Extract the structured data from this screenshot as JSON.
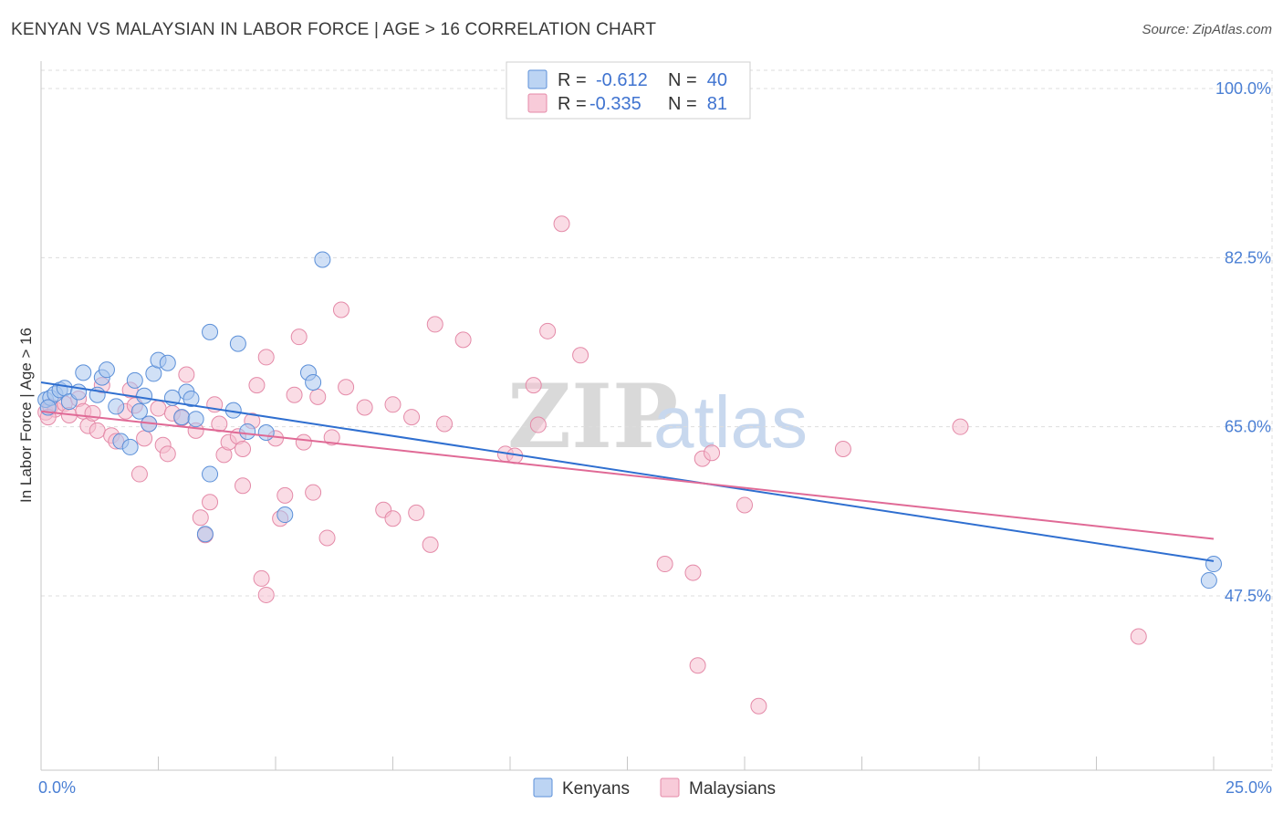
{
  "title": "KENYAN VS MALAYSIAN IN LABOR FORCE | AGE > 16 CORRELATION CHART",
  "source": "Source: ZipAtlas.com",
  "watermark": {
    "zip": "ZIP",
    "atlas": "atlas"
  },
  "legend": {
    "rows": [
      {
        "r_label": "R =",
        "r_value": "-0.612",
        "n_label": "N =",
        "n_value": "40"
      },
      {
        "r_label": "R =",
        "r_value": "-0.335",
        "n_label": "N =",
        "n_value": "81"
      }
    ]
  },
  "bottom_legend": [
    "Kenyans",
    "Malaysians"
  ],
  "colors": {
    "kenyan_fill": "#a9c7ef",
    "kenyan_stroke": "#5b8fd8",
    "kenyan_line": "#2f6fd0",
    "malaysian_fill": "#f5bfd0",
    "malaysian_stroke": "#e48aa8",
    "malaysian_line": "#e06a96",
    "tick_text": "#4a7fd4",
    "grid": "#dddddd"
  },
  "chart_data": {
    "type": "scatter",
    "title": "KENYAN VS MALAYSIAN IN LABOR FORCE | AGE > 16 CORRELATION CHART",
    "xlabel": "",
    "ylabel": "In Labor Force | Age > 16",
    "xlim": [
      0,
      25
    ],
    "ylim": [
      32,
      102
    ],
    "x_tick_labels": [
      "0.0%",
      "25.0%"
    ],
    "y_ticks": [
      47.5,
      65.0,
      82.5,
      100.0
    ],
    "y_tick_labels": [
      "47.5%",
      "65.0%",
      "82.5%",
      "100.0%"
    ],
    "grid": true,
    "legend_placement": "top-center",
    "series": [
      {
        "name": "Kenyans",
        "r": -0.612,
        "n": 40,
        "trend": {
          "x": [
            0,
            25
          ],
          "y": [
            69.6,
            51.1
          ]
        },
        "points": [
          [
            0.1,
            67.8
          ],
          [
            0.2,
            68.0
          ],
          [
            0.3,
            68.4
          ],
          [
            0.4,
            68.8
          ],
          [
            0.5,
            69.0
          ],
          [
            0.6,
            67.6
          ],
          [
            0.8,
            68.6
          ],
          [
            0.9,
            70.6
          ],
          [
            1.2,
            68.3
          ],
          [
            1.3,
            70.1
          ],
          [
            1.4,
            70.9
          ],
          [
            1.6,
            67.1
          ],
          [
            1.7,
            63.5
          ],
          [
            1.9,
            62.9
          ],
          [
            2.0,
            69.8
          ],
          [
            2.1,
            66.6
          ],
          [
            2.2,
            68.2
          ],
          [
            2.3,
            65.3
          ],
          [
            2.4,
            70.5
          ],
          [
            2.5,
            71.9
          ],
          [
            2.7,
            71.6
          ],
          [
            2.8,
            68.0
          ],
          [
            3.0,
            66.0
          ],
          [
            3.1,
            68.6
          ],
          [
            3.2,
            67.9
          ],
          [
            3.3,
            65.8
          ],
          [
            3.5,
            53.9
          ],
          [
            3.6,
            60.1
          ],
          [
            3.6,
            74.8
          ],
          [
            4.1,
            66.7
          ],
          [
            4.2,
            73.6
          ],
          [
            4.4,
            64.5
          ],
          [
            4.8,
            64.4
          ],
          [
            5.2,
            55.9
          ],
          [
            5.7,
            70.6
          ],
          [
            5.8,
            69.6
          ],
          [
            6.0,
            82.3
          ],
          [
            24.9,
            49.1
          ],
          [
            25.0,
            50.8
          ],
          [
            0.15,
            67.0
          ]
        ]
      },
      {
        "name": "Malaysians",
        "r": -0.335,
        "n": 81,
        "trend": {
          "x": [
            0,
            25
          ],
          "y": [
            66.6,
            53.4
          ]
        },
        "points": [
          [
            0.1,
            66.5
          ],
          [
            0.2,
            67.1
          ],
          [
            0.3,
            66.8
          ],
          [
            0.5,
            67.4
          ],
          [
            0.6,
            66.2
          ],
          [
            0.8,
            67.9
          ],
          [
            0.9,
            66.6
          ],
          [
            1.0,
            65.1
          ],
          [
            1.1,
            66.4
          ],
          [
            1.2,
            64.6
          ],
          [
            1.3,
            69.3
          ],
          [
            1.5,
            64.1
          ],
          [
            1.6,
            63.5
          ],
          [
            1.8,
            66.6
          ],
          [
            1.9,
            68.8
          ],
          [
            2.0,
            67.2
          ],
          [
            2.1,
            60.1
          ],
          [
            2.2,
            63.8
          ],
          [
            2.3,
            65.3
          ],
          [
            2.5,
            66.9
          ],
          [
            2.6,
            63.1
          ],
          [
            2.7,
            62.2
          ],
          [
            2.8,
            66.4
          ],
          [
            3.0,
            65.9
          ],
          [
            3.1,
            70.4
          ],
          [
            3.3,
            64.6
          ],
          [
            3.4,
            55.6
          ],
          [
            3.5,
            53.8
          ],
          [
            3.6,
            57.2
          ],
          [
            3.7,
            67.3
          ],
          [
            3.8,
            65.3
          ],
          [
            3.9,
            62.1
          ],
          [
            4.0,
            63.4
          ],
          [
            4.2,
            64.0
          ],
          [
            4.3,
            58.9
          ],
          [
            4.3,
            62.7
          ],
          [
            4.5,
            65.6
          ],
          [
            4.6,
            69.3
          ],
          [
            4.7,
            49.3
          ],
          [
            4.8,
            47.6
          ],
          [
            4.8,
            72.2
          ],
          [
            5.0,
            63.8
          ],
          [
            5.1,
            55.5
          ],
          [
            5.2,
            57.9
          ],
          [
            5.4,
            68.3
          ],
          [
            5.5,
            74.3
          ],
          [
            5.6,
            63.4
          ],
          [
            5.8,
            58.2
          ],
          [
            5.9,
            68.1
          ],
          [
            6.1,
            53.5
          ],
          [
            6.4,
            77.1
          ],
          [
            6.5,
            69.1
          ],
          [
            6.9,
            67.0
          ],
          [
            7.3,
            56.4
          ],
          [
            7.5,
            67.3
          ],
          [
            7.5,
            55.5
          ],
          [
            7.9,
            66.0
          ],
          [
            8.0,
            56.1
          ],
          [
            8.3,
            52.8
          ],
          [
            8.4,
            75.6
          ],
          [
            8.6,
            65.3
          ],
          [
            9.0,
            74.0
          ],
          [
            9.9,
            62.2
          ],
          [
            10.1,
            62.0
          ],
          [
            10.5,
            69.3
          ],
          [
            10.6,
            65.2
          ],
          [
            10.8,
            74.9
          ],
          [
            11.1,
            86.0
          ],
          [
            11.5,
            72.4
          ],
          [
            13.3,
            50.8
          ],
          [
            13.9,
            49.9
          ],
          [
            14.1,
            61.7
          ],
          [
            14.3,
            62.3
          ],
          [
            14.0,
            40.3
          ],
          [
            15.0,
            56.9
          ],
          [
            15.3,
            36.1
          ],
          [
            17.1,
            62.7
          ],
          [
            19.6,
            65.0
          ],
          [
            23.4,
            43.3
          ],
          [
            6.2,
            63.9
          ],
          [
            0.15,
            66.0
          ]
        ]
      }
    ]
  }
}
